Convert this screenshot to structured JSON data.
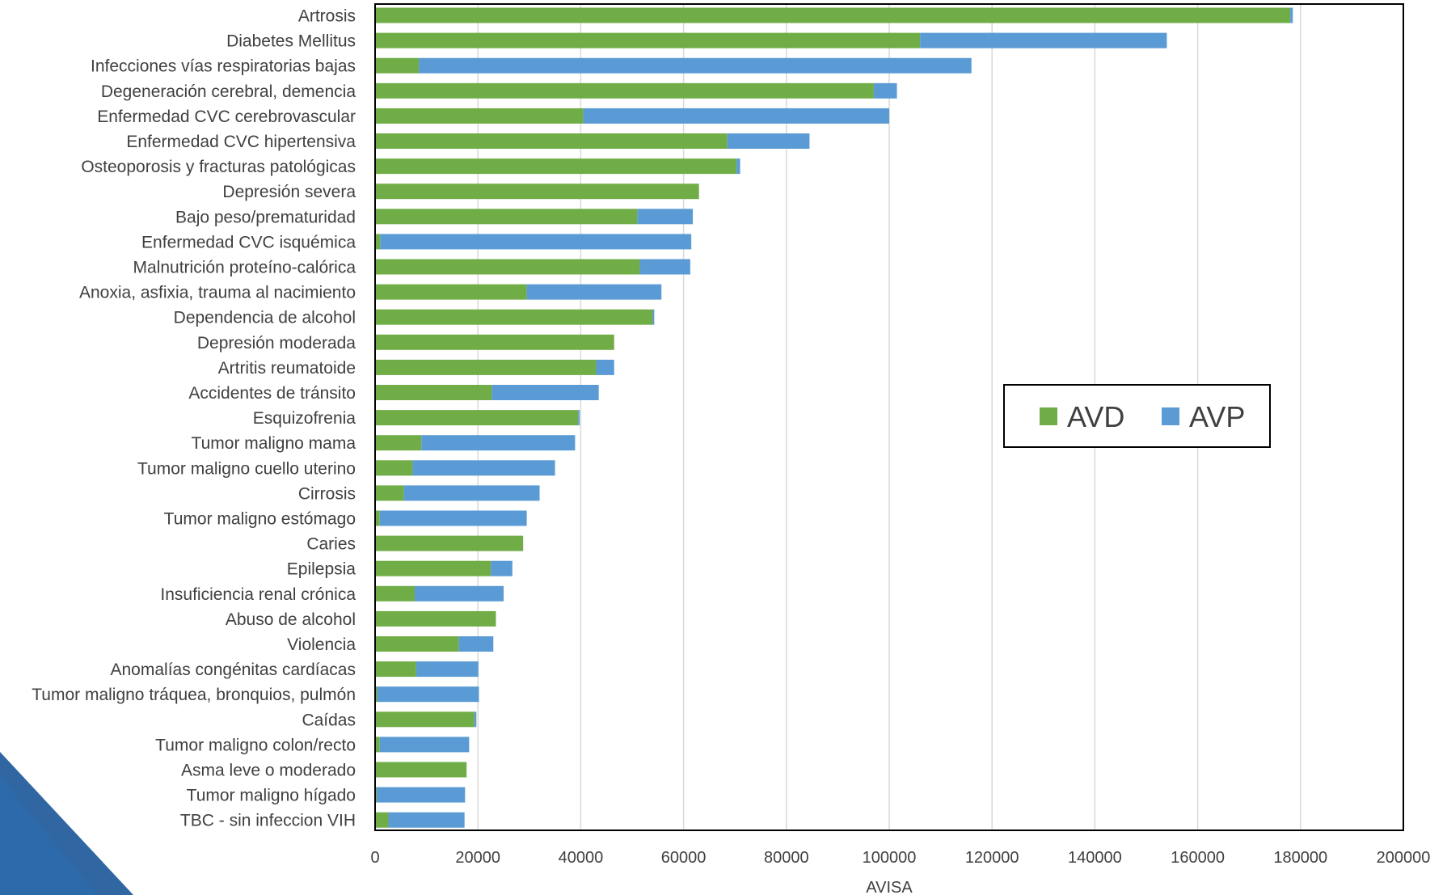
{
  "colors": {
    "avd": "#70ad47",
    "avp": "#5b9bd5",
    "grid": "#d9d9d9",
    "frame": "#000000",
    "decoration": "#1e5a9a"
  },
  "chart_data": {
    "type": "bar",
    "orientation": "horizontal",
    "stacked": true,
    "categories": [
      "Artrosis",
      "Diabetes Mellitus",
      "Infecciones vías respiratorias bajas",
      "Degeneración cerebral, demencia",
      "Enfermedad CVC cerebrovascular",
      "Enfermedad CVC hipertensiva",
      "Osteoporosis y fracturas patológicas",
      "Depresión severa",
      "Bajo peso/prematuridad",
      "Enfermedad CVC isquémica",
      "Malnutrición proteíno-calórica",
      "Anoxia, asfixia, trauma al nacimiento",
      "Dependencia de alcohol",
      "Depresión moderada",
      "Artritis reumatoide",
      "Accidentes de tránsito",
      "Esquizofrenia",
      "Tumor maligno mama",
      "Tumor maligno cuello uterino",
      "Cirrosis",
      "Tumor maligno estómago",
      "Caries",
      "Epilepsia",
      "Insuficiencia renal crónica",
      "Abuso de alcohol",
      "Violencia",
      "Anomalías congénitas cardíacas",
      "Tumor maligno tráquea, bronquios, pulmón",
      "Caídas",
      "Tumor maligno colon/recto",
      "Asma leve o moderado",
      "Tumor maligno hígado",
      "TBC - sin infeccion VIH"
    ],
    "series": [
      {
        "name": "AVD",
        "color": "#70ad47",
        "values": [
          178000,
          106000,
          8500,
          97000,
          40500,
          68500,
          70300,
          63000,
          51000,
          1000,
          51500,
          29500,
          54000,
          46500,
          43000,
          22700,
          39500,
          9000,
          7300,
          5600,
          900,
          28800,
          22500,
          7700,
          23500,
          16300,
          8000,
          400,
          19300,
          900,
          17800,
          300,
          2600
        ]
      },
      {
        "name": "AVP",
        "color": "#5b9bd5",
        "values": [
          500,
          48000,
          107500,
          4500,
          59500,
          16000,
          700,
          0,
          10800,
          60500,
          9800,
          26200,
          300,
          0,
          3500,
          20800,
          300,
          29900,
          27700,
          26400,
          28600,
          0,
          4200,
          17300,
          0,
          6700,
          12100,
          19800,
          400,
          17400,
          0,
          17200,
          14800
        ]
      }
    ],
    "xlabel": "AVISA",
    "ylabel": "",
    "xlim": [
      0,
      200000
    ],
    "xticks": [
      0,
      20000,
      40000,
      60000,
      80000,
      100000,
      120000,
      140000,
      160000,
      180000,
      200000
    ],
    "grid": true,
    "legend_position": "right-middle"
  }
}
